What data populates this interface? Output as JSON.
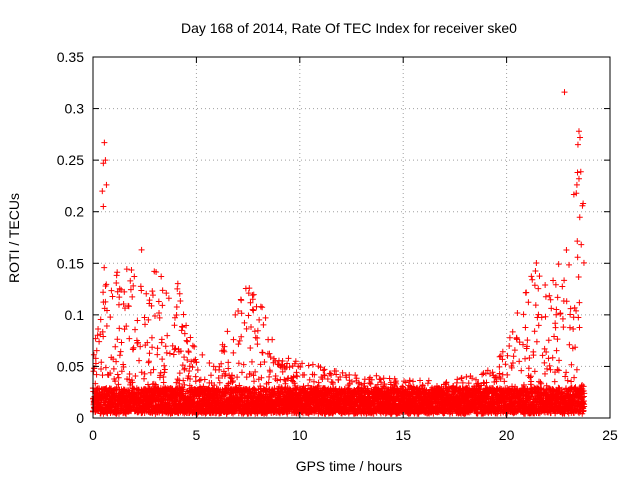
{
  "chart_data": {
    "type": "scatter",
    "title": "Day 168 of 2014, Rate Of TEC Index for receiver ske0",
    "xlabel": "GPS time / hours",
    "ylabel": "ROTI / TECUs",
    "xlim": [
      0,
      25
    ],
    "ylim": [
      0,
      0.35
    ],
    "x_ticks": [
      0,
      5,
      10,
      15,
      20,
      25
    ],
    "x_tick_labels": [
      "0",
      "5",
      "10",
      "15",
      "20",
      "25"
    ],
    "y_ticks": [
      0,
      0.05,
      0.1,
      0.15,
      0.2,
      0.25,
      0.3,
      0.35
    ],
    "y_tick_labels": [
      "0",
      "0.05",
      "0.1",
      "0.15",
      "0.2",
      "0.25",
      "0.3",
      "0.35"
    ],
    "grid": true,
    "marker": "+",
    "color": "#ff0000",
    "envelope_x": [
      0,
      0.25,
      0.5,
      0.75,
      1.0,
      1.5,
      2.0,
      2.5,
      3.0,
      3.5,
      4.0,
      4.5,
      5.0,
      5.5,
      6.0,
      6.5,
      7.0,
      7.5,
      8.0,
      8.5,
      9.0,
      10.0,
      11.0,
      12.0,
      13.0,
      14.0,
      15.0,
      16.0,
      17.0,
      18.0,
      19.0,
      19.5,
      20.0,
      20.5,
      21.0,
      21.5,
      22.0,
      22.5,
      23.0,
      23.25,
      23.5,
      23.75
    ],
    "envelope_max": [
      0.06,
      0.1,
      0.2,
      0.12,
      0.16,
      0.14,
      0.16,
      0.13,
      0.15,
      0.14,
      0.15,
      0.1,
      0.07,
      0.06,
      0.05,
      0.09,
      0.12,
      0.13,
      0.12,
      0.09,
      0.06,
      0.055,
      0.05,
      0.045,
      0.045,
      0.04,
      0.04,
      0.04,
      0.035,
      0.04,
      0.045,
      0.055,
      0.07,
      0.1,
      0.14,
      0.155,
      0.13,
      0.15,
      0.2,
      0.23,
      0.27,
      0.21
    ],
    "outliers": [
      {
        "x": 0.55,
        "y": 0.267
      },
      {
        "x": 0.6,
        "y": 0.25
      },
      {
        "x": 0.5,
        "y": 0.247
      },
      {
        "x": 0.65,
        "y": 0.226
      },
      {
        "x": 0.45,
        "y": 0.22
      },
      {
        "x": 0.5,
        "y": 0.205
      },
      {
        "x": 2.35,
        "y": 0.163
      },
      {
        "x": 22.8,
        "y": 0.316
      },
      {
        "x": 23.5,
        "y": 0.278
      },
      {
        "x": 23.55,
        "y": 0.272
      },
      {
        "x": 23.45,
        "y": 0.265
      },
      {
        "x": 23.5,
        "y": 0.232
      },
      {
        "x": 23.4,
        "y": 0.226
      },
      {
        "x": 23.7,
        "y": 0.208
      }
    ]
  }
}
